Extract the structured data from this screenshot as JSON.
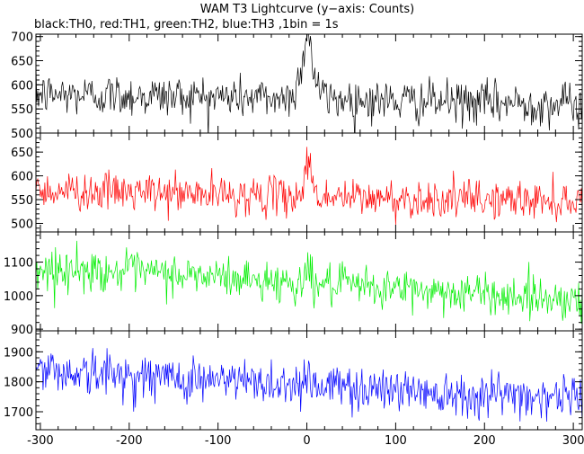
{
  "chart_data": {
    "type": "line",
    "title": "WAM T3 Lightcurve (y−axis: Counts)",
    "subtitle": "black:TH0, red:TH1, green:TH2, blue:TH3 ,1bin = 1s",
    "xlabel": "",
    "ylabel": "",
    "x_range": [
      -305,
      310
    ],
    "x_ticks": [
      -300,
      -200,
      -100,
      0,
      100,
      200,
      300
    ],
    "bin_seconds": 1,
    "grid": false,
    "panels": [
      {
        "id": "TH0",
        "color": "#000000",
        "ylim": [
          500,
          705
        ],
        "yticks": [
          500,
          550,
          600,
          650,
          700
        ],
        "baseline_x": [
          -300,
          -200,
          -100,
          -20,
          0,
          20,
          100,
          200,
          300,
          308
        ],
        "baseline_y": [
          580,
          578,
          575,
          572,
          640,
          572,
          566,
          563,
          560,
          558
        ],
        "noise_sigma": 22,
        "burst": {
          "center_x": 1,
          "width": 5,
          "height": 80
        }
      },
      {
        "id": "TH1",
        "color": "#ff0000",
        "ylim": [
          482,
          690
        ],
        "yticks": [
          500,
          550,
          600,
          650
        ],
        "baseline_x": [
          -300,
          -200,
          -100,
          0,
          100,
          200,
          300,
          308
        ],
        "baseline_y": [
          570,
          565,
          560,
          556,
          552,
          550,
          548,
          545
        ],
        "noise_sigma": 20,
        "burst": {
          "center_x": 2,
          "width": 6,
          "height": 70
        }
      },
      {
        "id": "TH2",
        "color": "#00ee00",
        "ylim": [
          895,
          1190
        ],
        "yticks": [
          900,
          1000,
          1100
        ],
        "baseline_x": [
          -300,
          -200,
          -100,
          0,
          100,
          200,
          300,
          308
        ],
        "baseline_y": [
          1080,
          1070,
          1055,
          1035,
          1020,
          1005,
          990,
          985
        ],
        "noise_sigma": 30,
        "burst": {
          "center_x": 1,
          "width": 4,
          "height": 50
        }
      },
      {
        "id": "TH3",
        "color": "#0000ff",
        "ylim": [
          1640,
          1970
        ],
        "yticks": [
          1700,
          1800,
          1900
        ],
        "baseline_x": [
          -300,
          -200,
          -100,
          0,
          100,
          200,
          300,
          308
        ],
        "baseline_y": [
          1840,
          1820,
          1805,
          1790,
          1775,
          1760,
          1750,
          1745
        ],
        "noise_sigma": 38,
        "burst": {
          "center_x": 0,
          "width": 4,
          "height": 40
        }
      }
    ]
  }
}
